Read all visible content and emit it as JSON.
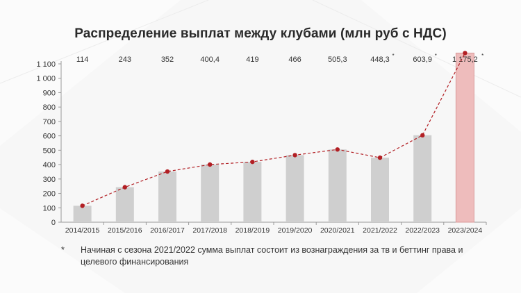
{
  "title": "Распределение выплат между клубами (млн руб с НДС)",
  "footnote": {
    "marker": "*",
    "text": "Начиная с сезона 2021/2022 сумма выплат состоит из вознаграждения за тв и беттинг права и целевого финансирования"
  },
  "colors": {
    "bar": "#cfcfcf",
    "bar_highlight": "#eebcbc",
    "bar_highlight_border": "#d99a9a",
    "line": "#b21f24",
    "axis_text": "#333333"
  },
  "chart_data": {
    "type": "bar",
    "title": "Распределение выплат между клубами (млн руб с НДС)",
    "categories": [
      "2014/2015",
      "2015/2016",
      "2016/2017",
      "2017/2018",
      "2018/2019",
      "2019/2020",
      "2020/2021",
      "2021/2022",
      "2022/2023",
      "2023/2024"
    ],
    "values": [
      114,
      243,
      352,
      400.4,
      419,
      466,
      505.3,
      448.3,
      603.9,
      1175.2
    ],
    "value_labels": [
      "114",
      "243",
      "352",
      "400,4",
      "419",
      "466",
      "505,3",
      "448,3",
      "603,9",
      "1 175,2"
    ],
    "starred": [
      false,
      false,
      false,
      false,
      false,
      false,
      false,
      true,
      true,
      true
    ],
    "highlight_index": 9,
    "overlay_line": true,
    "yticks": [
      0,
      100,
      200,
      300,
      400,
      500,
      600,
      700,
      800,
      900,
      1000,
      1100
    ],
    "ytick_labels": [
      "0",
      "100",
      "200",
      "300",
      "400",
      "500",
      "600",
      "700",
      "800",
      "900",
      "1 000",
      "1 100"
    ],
    "ylim": [
      0,
      1100
    ],
    "grid": false,
    "xlabel": "",
    "ylabel": ""
  }
}
